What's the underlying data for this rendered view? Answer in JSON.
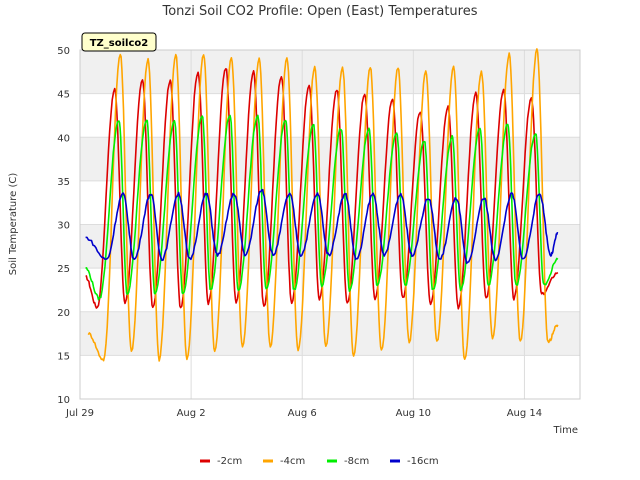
{
  "chart_data": {
    "type": "line",
    "title": "Tonzi Soil CO2 Profile: Open (East) Temperatures",
    "xlabel": "Time",
    "ylabel": "Soil Temperature (C)",
    "site_label": "TZ_soilco2",
    "x_start": "Jul 29",
    "x_end": "Aug 15",
    "xlim_days": [
      0,
      18
    ],
    "ylim": [
      10,
      50
    ],
    "y_ticks": [
      10,
      15,
      20,
      25,
      30,
      35,
      40,
      45,
      50
    ],
    "x_ticks": [
      {
        "day": 0,
        "label": "Jul 29"
      },
      {
        "day": 4,
        "label": "Aug 2"
      },
      {
        "day": 8,
        "label": "Aug 6"
      },
      {
        "day": 12,
        "label": "Aug 10"
      },
      {
        "day": 16,
        "label": "Aug 14"
      }
    ],
    "grid": true,
    "band_shading": true,
    "legend_position": "bottom",
    "peak_days": [
      0.62,
      1.62,
      2.62,
      3.62,
      4.62,
      5.62,
      6.62,
      7.62,
      8.62,
      9.62,
      10.62,
      11.62,
      12.62,
      13.62,
      14.62,
      15.62,
      16.62,
      17.62
    ],
    "series": [
      {
        "name": "-2cm",
        "color": "#dd0000",
        "x": [
          0.2,
          0.62,
          1.25,
          1.62,
          2.25,
          2.62,
          3.25,
          3.62,
          4.25,
          4.62,
          5.25,
          5.62,
          6.25,
          6.62,
          7.25,
          7.62,
          8.25,
          8.62,
          9.25,
          9.62,
          10.25,
          10.62,
          11.25,
          11.62,
          12.25,
          12.62,
          13.25,
          13.62,
          14.25,
          14.62,
          15.25,
          15.62,
          16.25,
          16.62,
          17.2
        ],
        "y": [
          24,
          20.5,
          45.5,
          21,
          46.5,
          20.5,
          46.5,
          20.5,
          47.5,
          21,
          48,
          21,
          47.5,
          20.5,
          47,
          21,
          46,
          21.5,
          45.5,
          21,
          45,
          21.5,
          44.5,
          21.5,
          43,
          21,
          43.5,
          20.5,
          45,
          21.5,
          45.5,
          21.5,
          44.5,
          22,
          24.5
        ]
      },
      {
        "name": "-4cm",
        "color": "#ffa500",
        "x": [
          0.3,
          0.85,
          1.45,
          1.85,
          2.45,
          2.85,
          3.45,
          3.85,
          4.45,
          4.85,
          5.45,
          5.85,
          6.45,
          6.85,
          7.45,
          7.85,
          8.45,
          8.85,
          9.45,
          9.85,
          10.45,
          10.85,
          11.45,
          11.85,
          12.45,
          12.85,
          13.45,
          13.85,
          14.45,
          14.85,
          15.45,
          15.85,
          16.45,
          16.85,
          17.2
        ],
        "y": [
          17.5,
          14.5,
          49.5,
          15.5,
          49,
          14.5,
          49.5,
          14.5,
          49.5,
          15.5,
          49,
          16,
          49,
          16,
          49,
          15.5,
          48,
          16,
          48,
          15,
          48,
          15.5,
          48,
          16.5,
          47.5,
          16.5,
          48,
          14.5,
          47.5,
          17,
          49.5,
          16.5,
          50,
          16.5,
          18.5
        ]
      },
      {
        "name": "-8cm",
        "color": "#00ee00",
        "x": [
          0.2,
          0.7,
          1.4,
          1.7,
          2.4,
          2.7,
          3.4,
          3.7,
          4.4,
          4.7,
          5.4,
          5.7,
          6.4,
          6.7,
          7.4,
          7.7,
          8.4,
          8.7,
          9.4,
          9.7,
          10.4,
          10.7,
          11.4,
          11.7,
          12.4,
          12.7,
          13.4,
          13.7,
          14.4,
          14.7,
          15.4,
          15.7,
          16.4,
          16.7,
          17.2
        ],
        "y": [
          25,
          21.5,
          42,
          22,
          42,
          22,
          42,
          22,
          42.5,
          22.5,
          42.5,
          22.5,
          42.5,
          22.5,
          42,
          22.5,
          41.5,
          23,
          41,
          22.5,
          41,
          23,
          40.5,
          23,
          39.5,
          22.5,
          40,
          22.5,
          41,
          23,
          41.5,
          23,
          40.5,
          23,
          26
        ]
      },
      {
        "name": "-16cm",
        "color": "#0000cc",
        "x": [
          0.2,
          0.95,
          1.55,
          1.95,
          2.55,
          2.95,
          3.55,
          3.95,
          4.55,
          4.95,
          5.55,
          5.95,
          6.55,
          6.95,
          7.55,
          7.95,
          8.55,
          8.95,
          9.55,
          9.95,
          10.55,
          10.95,
          11.55,
          11.95,
          12.55,
          12.95,
          13.55,
          13.95,
          14.55,
          14.95,
          15.55,
          15.95,
          16.55,
          16.95,
          17.2
        ],
        "y": [
          28.5,
          26,
          33.5,
          26,
          33.5,
          26,
          33.5,
          26,
          33.5,
          26.5,
          33.5,
          26.5,
          34,
          26.5,
          33.5,
          26.5,
          33.5,
          26.5,
          33.5,
          26,
          33.5,
          26.5,
          33.5,
          26.5,
          33,
          26,
          33,
          25.5,
          33,
          26,
          33.5,
          26,
          33.5,
          26.5,
          29
        ]
      }
    ]
  }
}
